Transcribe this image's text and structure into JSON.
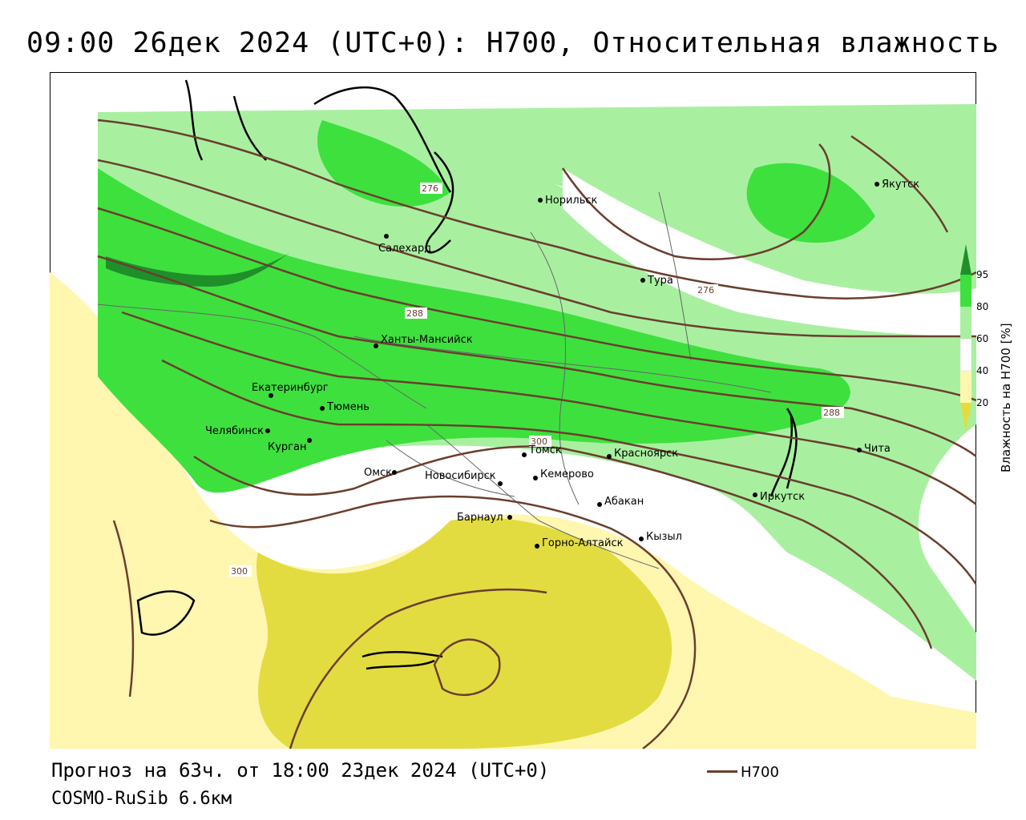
{
  "title": "09:00 26дек 2024 (UTC+0): H700, Относительная влажность",
  "footer": {
    "forecast": "Прогноз на 63ч. от 18:00 23дек 2024 (UTC+0)",
    "model": "COSMO-RuSib 6.6км"
  },
  "legend": {
    "line_label": "H700",
    "line_color": "#6b3e2e"
  },
  "colorbar": {
    "title": "Влажность на H700 [%]",
    "ticks": [
      "95",
      "80",
      "60",
      "40",
      "20"
    ],
    "colors": {
      "above95": "#1f8f2a",
      "80_95": "#3ee03e",
      "60_80": "#a8f0a0",
      "40_60": "#ffffff",
      "20_40": "#fff6b0",
      "below20": "#e2dc40"
    }
  },
  "cities": [
    {
      "name": "Салехард"
    },
    {
      "name": "Норильск"
    },
    {
      "name": "Якутск"
    },
    {
      "name": "Тура"
    },
    {
      "name": "Ханты-Мансийск"
    },
    {
      "name": "Екатеринбург"
    },
    {
      "name": "Тюмень"
    },
    {
      "name": "Челябинск"
    },
    {
      "name": "Курган"
    },
    {
      "name": "Омск"
    },
    {
      "name": "Новосибирск"
    },
    {
      "name": "Томск"
    },
    {
      "name": "Кемерово"
    },
    {
      "name": "Красноярск"
    },
    {
      "name": "Барнаул"
    },
    {
      "name": "Абакан"
    },
    {
      "name": "Горно-Алтайск"
    },
    {
      "name": "Кызыл"
    },
    {
      "name": "Иркутск"
    },
    {
      "name": "Чита"
    }
  ],
  "contour_labels": [
    "276",
    "276",
    "288",
    "288",
    "300",
    "300"
  ]
}
